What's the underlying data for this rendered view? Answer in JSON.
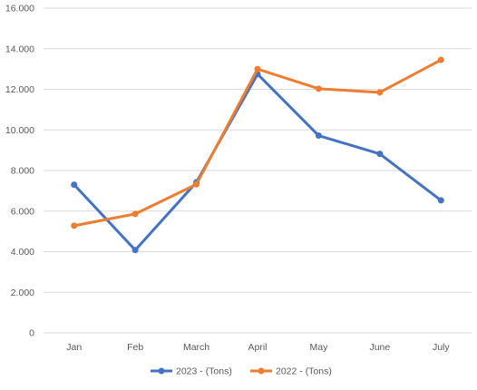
{
  "chart_data": {
    "type": "line",
    "title": "",
    "xlabel": "",
    "ylabel": "",
    "categories": [
      "Jan",
      "Feb",
      "March",
      "April",
      "May",
      "June",
      "July"
    ],
    "y_ticks": [
      "0",
      "2.000",
      "4.000",
      "6.000",
      "8.000",
      "10.000",
      "12.000",
      "14.000",
      "16.000"
    ],
    "ylim": [
      0,
      16000
    ],
    "grid": true,
    "legend_position": "bottom",
    "series": [
      {
        "name": "2023 - (Tons)",
        "color": "#4472C4",
        "values": [
          7300,
          4080,
          7420,
          12750,
          9720,
          8820,
          6530
        ]
      },
      {
        "name": "2022 - (Tons)",
        "color": "#ED7D31",
        "values": [
          5280,
          5860,
          7320,
          13000,
          12030,
          11850,
          13450
        ]
      }
    ],
    "gridline_color": "#D9D9D9"
  }
}
